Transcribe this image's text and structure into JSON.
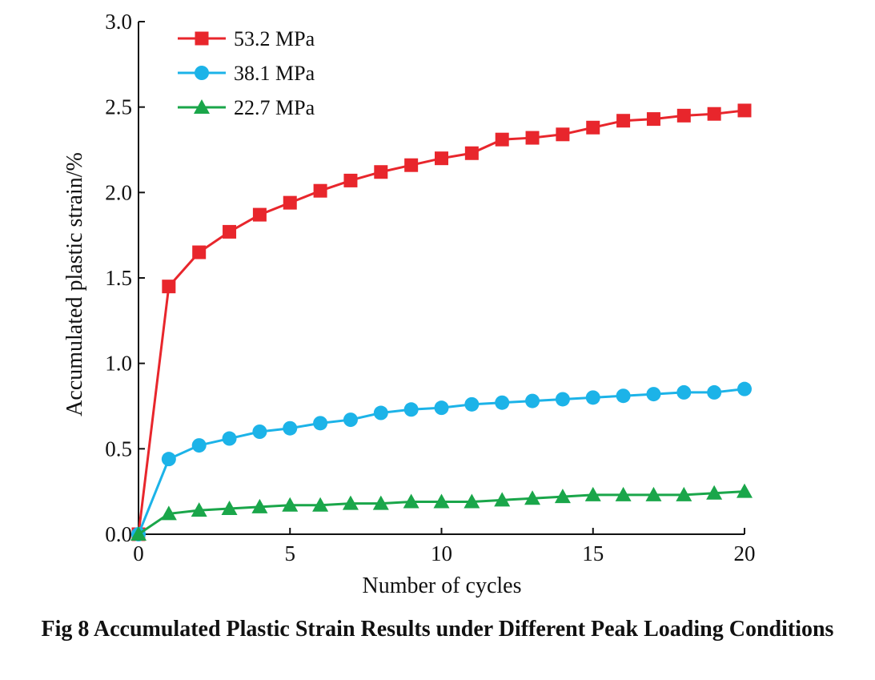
{
  "caption": "Fig 8 Accumulated Plastic Strain Results under Different Peak Loading Conditions",
  "chart_data": {
    "type": "line",
    "title": "",
    "xlabel": "Number of cycles",
    "ylabel": "Accumulated plastic strain/%",
    "xlim": [
      0,
      20
    ],
    "ylim": [
      0,
      3.0
    ],
    "xticks": [
      "0",
      "5",
      "10",
      "15",
      "20"
    ],
    "xtick_values": [
      0,
      5,
      10,
      15,
      20
    ],
    "yticks": [
      "0.0",
      "0.5",
      "1.0",
      "1.5",
      "2.0",
      "2.5",
      "3.0"
    ],
    "ytick_values": [
      0,
      0.5,
      1.0,
      1.5,
      2.0,
      2.5,
      3.0
    ],
    "grid": false,
    "legend_position": "top-left",
    "x": [
      0,
      1,
      2,
      3,
      4,
      5,
      6,
      7,
      8,
      9,
      10,
      11,
      12,
      13,
      14,
      15,
      16,
      17,
      18,
      19,
      20
    ],
    "series": [
      {
        "name": "53.2 MPa",
        "color": "#e8262c",
        "marker": "square",
        "values": [
          0,
          1.45,
          1.65,
          1.77,
          1.87,
          1.94,
          2.01,
          2.07,
          2.12,
          2.16,
          2.2,
          2.23,
          2.31,
          2.32,
          2.34,
          2.38,
          2.42,
          2.43,
          2.45,
          2.46,
          2.48
        ]
      },
      {
        "name": "38.1 MPa",
        "color": "#1cb3e8",
        "marker": "circle",
        "values": [
          0,
          0.44,
          0.52,
          0.56,
          0.6,
          0.62,
          0.65,
          0.67,
          0.71,
          0.73,
          0.74,
          0.76,
          0.77,
          0.78,
          0.79,
          0.8,
          0.81,
          0.82,
          0.83,
          0.83,
          0.85
        ]
      },
      {
        "name": "22.7 MPa",
        "color": "#1aa64a",
        "marker": "triangle",
        "values": [
          0,
          0.12,
          0.14,
          0.15,
          0.16,
          0.17,
          0.17,
          0.18,
          0.18,
          0.19,
          0.19,
          0.19,
          0.2,
          0.21,
          0.22,
          0.23,
          0.23,
          0.23,
          0.23,
          0.24,
          0.25
        ]
      }
    ]
  }
}
